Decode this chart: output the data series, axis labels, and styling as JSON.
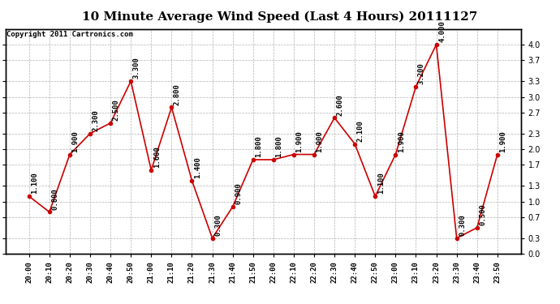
{
  "title": "10 Minute Average Wind Speed (Last 4 Hours) 20111127",
  "copyright": "Copyright 2011 Cartronics.com",
  "x_labels": [
    "20:00",
    "20:10",
    "20:20",
    "20:30",
    "20:40",
    "20:50",
    "21:00",
    "21:10",
    "21:20",
    "21:30",
    "21:40",
    "21:50",
    "22:00",
    "22:10",
    "22:20",
    "22:30",
    "22:40",
    "22:50",
    "23:00",
    "23:10",
    "23:20",
    "23:30",
    "23:40",
    "23:50"
  ],
  "y_values": [
    1.1,
    0.8,
    1.9,
    2.3,
    2.5,
    3.3,
    1.6,
    2.8,
    1.4,
    0.3,
    0.9,
    1.8,
    1.8,
    1.9,
    1.9,
    2.6,
    2.1,
    1.1,
    1.9,
    3.2,
    4.0,
    0.3,
    0.5,
    1.9
  ],
  "y_labels": [
    "1.100",
    "0.800",
    "1.900",
    "2.300",
    "2.500",
    "3.300",
    "1.600",
    "2.800",
    "1.400",
    "0.300",
    "0.900",
    "1.800",
    "1.800",
    "1.900",
    "1.900",
    "2.600",
    "2.100",
    "1.100",
    "1.900",
    "3.200",
    "4.000",
    "0.300",
    "0.500",
    "1.900"
  ],
  "line_color": "#cc0000",
  "marker_color": "#cc0000",
  "bg_color": "#ffffff",
  "grid_color": "#aaaaaa",
  "title_fontsize": 11,
  "copyright_fontsize": 6.5,
  "annotation_fontsize": 6.5,
  "ylim": [
    0.0,
    4.3
  ],
  "yticks": [
    0.0,
    0.3,
    0.7,
    1.0,
    1.3,
    1.7,
    2.0,
    2.3,
    2.7,
    3.0,
    3.3,
    3.7,
    4.0
  ]
}
